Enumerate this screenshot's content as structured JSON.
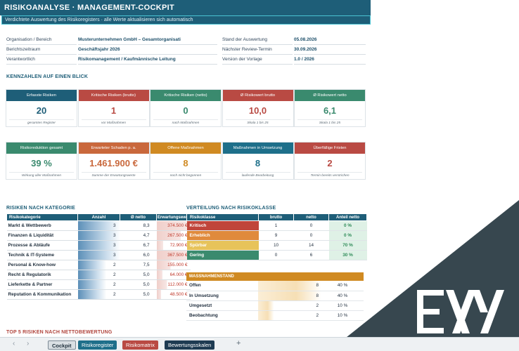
{
  "header": {
    "title": "RISIKOANALYSE  ·  MANAGEMENT-COCKPIT",
    "subtitle": "Verdichtete Auswertung des Risikoregisters · alle Werte aktualisieren sich automatisch"
  },
  "meta_left": [
    {
      "key": "Organisation / Bereich",
      "value": "Musterunternehmen GmbH – Gesamtorganisati"
    },
    {
      "key": "Berichtszeitraum",
      "value": "Geschäftsjahr 2026"
    },
    {
      "key": "Verantwortlich",
      "value": "Risikomanagement / Kaufmännische Leitung"
    }
  ],
  "meta_right": [
    {
      "key": "Stand der Auswertung",
      "value": "05.08.2026"
    },
    {
      "key": "Nächster Review-Termin",
      "value": "30.09.2026"
    },
    {
      "key": "Version der Vorlage",
      "value": "1.0 / 2026"
    }
  ],
  "kpi_title": "KENNZAHLEN AUF EINEN BLICK",
  "kpis_row1": [
    {
      "label": "Erfasste Risiken",
      "value": "20",
      "note": "gesamtes Register",
      "color": "#1e5e78"
    },
    {
      "label": "Kritische Risiken (brutto)",
      "value": "1",
      "note": "vor Maßnahmen",
      "color": "#b94a43"
    },
    {
      "label": "Kritische Risiken (netto)",
      "value": "0",
      "note": "nach Maßnahmen",
      "color": "#3a8a6e"
    },
    {
      "label": "Ø Risikowert brutto",
      "value": "10,0",
      "note": "Skala 1 bis 25",
      "color": "#b94a43"
    },
    {
      "label": "Ø Risikowert netto",
      "value": "6,1",
      "note": "Skala 1 bis 25",
      "color": "#3a8a6e"
    }
  ],
  "kpis_row2": [
    {
      "label": "Risikoreduktion gesamt",
      "value": "39 %",
      "note": "Wirkung aller Maßnahmen",
      "color": "#3a8a6e"
    },
    {
      "label": "Erwarteter Schaden p. a.",
      "value": "1.461.900 €",
      "note": "Summe der Erwartungswerte",
      "color": "#c9683c"
    },
    {
      "label": "Offene Maßnahmen",
      "value": "8",
      "note": "noch nicht begonnen",
      "color": "#d08a22"
    },
    {
      "label": "Maßnahmen in Umsetzung",
      "value": "8",
      "note": "laufende Bearbeitung",
      "color": "#1e6f8a"
    },
    {
      "label": "Überfällige Fristen",
      "value": "2",
      "note": "Termin bereits verstrichen",
      "color": "#b94a43"
    }
  ],
  "categories": {
    "title": "RISIKEN NACH KATEGORIE",
    "headers": [
      "Risikokategorie",
      "Anzahl",
      "Ø netto",
      "Erwartungswert"
    ],
    "rows": [
      {
        "name": "Markt & Wettbewerb",
        "count": "3",
        "avg": "8,3",
        "ew": "374.500 €",
        "fill": 1.0,
        "ewfill": 1.0
      },
      {
        "name": "Finanzen & Liquidität",
        "count": "3",
        "avg": "4,7",
        "ew": "267.500 €",
        "fill": 1.0,
        "ewfill": 0.71
      },
      {
        "name": "Prozesse & Abläufe",
        "count": "3",
        "avg": "6,7",
        "ew": "72.900 €",
        "fill": 1.0,
        "ewfill": 0.19
      },
      {
        "name": "Technik & IT-Systeme",
        "count": "3",
        "avg": "6,0",
        "ew": "367.500 €",
        "fill": 1.0,
        "ewfill": 0.98
      },
      {
        "name": "Personal & Know-how",
        "count": "2",
        "avg": "7,5",
        "ew": "155.000 €",
        "fill": 0.67,
        "ewfill": 0.41
      },
      {
        "name": "Recht & Regulatorik",
        "count": "2",
        "avg": "5,0",
        "ew": "64.000 €",
        "fill": 0.67,
        "ewfill": 0.17
      },
      {
        "name": "Lieferkette & Partner",
        "count": "2",
        "avg": "5,0",
        "ew": "112.000 €",
        "fill": 0.67,
        "ewfill": 0.3
      },
      {
        "name": "Reputation & Kommunikation",
        "count": "2",
        "avg": "5,0",
        "ew": "48.500 €",
        "fill": 0.67,
        "ewfill": 0.13
      }
    ]
  },
  "distribution": {
    "title": "VERTEILUNG NACH RISIKOKLASSE",
    "headers": [
      "Risikoklasse",
      "brutto",
      "netto",
      "Anteil netto"
    ],
    "rows": [
      {
        "name": "Kritisch",
        "brutto": "1",
        "netto": "0",
        "pct": "0 %",
        "color": "#c0453a"
      },
      {
        "name": "Erheblich",
        "brutto": "9",
        "netto": "0",
        "pct": "0 %",
        "color": "#e08a3c"
      },
      {
        "name": "Spürbar",
        "brutto": "10",
        "netto": "14",
        "pct": "70 %",
        "color": "#e7c35a"
      },
      {
        "name": "Gering",
        "brutto": "0",
        "netto": "6",
        "pct": "30 %",
        "color": "#3a8a6e"
      }
    ]
  },
  "massnahmen": {
    "title": "MASSNAHMENSTAND",
    "rows": [
      {
        "name": "Offen",
        "count": "8",
        "pct": "40 %",
        "fill": 1.0
      },
      {
        "name": "In Umsetzung",
        "count": "8",
        "pct": "40 %",
        "fill": 1.0
      },
      {
        "name": "Umgesetzt",
        "count": "2",
        "pct": "10 %",
        "fill": 0.25
      },
      {
        "name": "Beobachtung",
        "count": "2",
        "pct": "10 %",
        "fill": 0.25
      }
    ]
  },
  "top5_title": "TOP 5 RISIKEN NACH NETTOBEWERTUNG",
  "tabs": [
    {
      "label": "Cockpit",
      "color": "#d9dfe3",
      "text": "#1a2b38",
      "active": true
    },
    {
      "label": "Risikoregister",
      "color": "#1e6f8a",
      "text": "#ffffff"
    },
    {
      "label": "Risikomatrix",
      "color": "#b94a43",
      "text": "#ffffff"
    },
    {
      "label": "Bewertungsskalen",
      "color": "#1e3b52",
      "text": "#ffffff"
    }
  ],
  "nav": {
    "prev": "‹",
    "next": "›",
    "add": "+"
  }
}
